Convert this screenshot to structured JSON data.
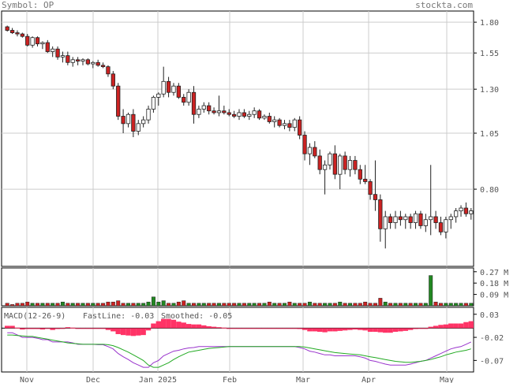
{
  "header": {
    "symbol": "Symbol: OP",
    "site": "stockta.com"
  },
  "colors": {
    "up": "#ffffff",
    "down": "#cc2222",
    "wick": "#222222",
    "vol_up": "#228822",
    "vol_down": "#cc2222",
    "grid": "#cccccc",
    "macd_pos": "#ff3366",
    "fast": "#9933cc",
    "smooth": "#22aa22"
  },
  "chart_data": [
    {
      "type": "candlestick",
      "title": "",
      "x_labels": [
        "Nov",
        "Dec",
        "Jan 2025",
        "Feb",
        "Mar",
        "Apr",
        "May"
      ],
      "y_ticks": [
        "1.80",
        "1.55",
        "1.30",
        "1.05",
        "0.80"
      ],
      "ylim": [
        0.55,
        1.9
      ],
      "y_scale": "log",
      "grid": true,
      "candles": [
        [
          1.76,
          1.77,
          1.72,
          1.73
        ],
        [
          1.73,
          1.75,
          1.7,
          1.71
        ],
        [
          1.71,
          1.73,
          1.68,
          1.7
        ],
        [
          1.7,
          1.71,
          1.67,
          1.68
        ],
        [
          1.68,
          1.7,
          1.6,
          1.61
        ],
        [
          1.61,
          1.68,
          1.59,
          1.67
        ],
        [
          1.67,
          1.68,
          1.6,
          1.62
        ],
        [
          1.62,
          1.64,
          1.58,
          1.63
        ],
        [
          1.63,
          1.65,
          1.55,
          1.56
        ],
        [
          1.56,
          1.6,
          1.52,
          1.58
        ],
        [
          1.58,
          1.6,
          1.5,
          1.52
        ],
        [
          1.52,
          1.56,
          1.48,
          1.53
        ],
        [
          1.53,
          1.56,
          1.46,
          1.48
        ],
        [
          1.48,
          1.52,
          1.45,
          1.5
        ],
        [
          1.5,
          1.52,
          1.46,
          1.49
        ],
        [
          1.49,
          1.51,
          1.46,
          1.5
        ],
        [
          1.5,
          1.51,
          1.46,
          1.47
        ],
        [
          1.47,
          1.49,
          1.44,
          1.48
        ],
        [
          1.48,
          1.5,
          1.45,
          1.46
        ],
        [
          1.46,
          1.48,
          1.44,
          1.45
        ],
        [
          1.45,
          1.46,
          1.38,
          1.4
        ],
        [
          1.4,
          1.42,
          1.3,
          1.32
        ],
        [
          1.32,
          1.34,
          1.12,
          1.14
        ],
        [
          1.14,
          1.18,
          1.05,
          1.1
        ],
        [
          1.1,
          1.16,
          1.08,
          1.15
        ],
        [
          1.15,
          1.18,
          1.03,
          1.06
        ],
        [
          1.06,
          1.12,
          1.04,
          1.1
        ],
        [
          1.1,
          1.14,
          1.08,
          1.12
        ],
        [
          1.12,
          1.2,
          1.1,
          1.18
        ],
        [
          1.18,
          1.26,
          1.16,
          1.25
        ],
        [
          1.25,
          1.28,
          1.2,
          1.27
        ],
        [
          1.27,
          1.45,
          1.25,
          1.35
        ],
        [
          1.35,
          1.38,
          1.25,
          1.28
        ],
        [
          1.28,
          1.34,
          1.26,
          1.32
        ],
        [
          1.32,
          1.34,
          1.24,
          1.25
        ],
        [
          1.25,
          1.27,
          1.2,
          1.22
        ],
        [
          1.22,
          1.3,
          1.2,
          1.28
        ],
        [
          1.28,
          1.32,
          1.1,
          1.15
        ],
        [
          1.15,
          1.2,
          1.13,
          1.18
        ],
        [
          1.18,
          1.22,
          1.16,
          1.2
        ],
        [
          1.2,
          1.22,
          1.15,
          1.17
        ],
        [
          1.17,
          1.19,
          1.15,
          1.16
        ],
        [
          1.16,
          1.26,
          1.14,
          1.17
        ],
        [
          1.17,
          1.2,
          1.15,
          1.16
        ],
        [
          1.16,
          1.18,
          1.14,
          1.15
        ],
        [
          1.15,
          1.17,
          1.13,
          1.14
        ],
        [
          1.14,
          1.18,
          1.12,
          1.16
        ],
        [
          1.16,
          1.18,
          1.13,
          1.14
        ],
        [
          1.14,
          1.17,
          1.12,
          1.15
        ],
        [
          1.15,
          1.19,
          1.13,
          1.17
        ],
        [
          1.17,
          1.18,
          1.12,
          1.13
        ],
        [
          1.13,
          1.15,
          1.12,
          1.14
        ],
        [
          1.14,
          1.16,
          1.1,
          1.11
        ],
        [
          1.11,
          1.14,
          1.08,
          1.12
        ],
        [
          1.12,
          1.13,
          1.08,
          1.09
        ],
        [
          1.09,
          1.12,
          1.07,
          1.1
        ],
        [
          1.1,
          1.12,
          1.06,
          1.08
        ],
        [
          1.08,
          1.13,
          1.06,
          1.12
        ],
        [
          1.12,
          1.14,
          1.02,
          1.04
        ],
        [
          1.04,
          1.06,
          0.92,
          0.95
        ],
        [
          0.95,
          1.0,
          0.9,
          0.98
        ],
        [
          0.98,
          1.01,
          0.93,
          0.94
        ],
        [
          0.94,
          0.97,
          0.86,
          0.88
        ],
        [
          0.88,
          0.92,
          0.78,
          0.9
        ],
        [
          0.9,
          0.96,
          0.88,
          0.95
        ],
        [
          0.95,
          0.99,
          0.84,
          0.86
        ],
        [
          0.86,
          0.95,
          0.8,
          0.94
        ],
        [
          0.94,
          0.96,
          0.86,
          0.88
        ],
        [
          0.88,
          0.94,
          0.85,
          0.92
        ],
        [
          0.92,
          0.94,
          0.86,
          0.88
        ],
        [
          0.88,
          0.9,
          0.82,
          0.84
        ],
        [
          0.84,
          0.9,
          0.82,
          0.83
        ],
        [
          0.83,
          0.84,
          0.76,
          0.78
        ],
        [
          0.78,
          0.92,
          0.72,
          0.76
        ],
        [
          0.76,
          0.78,
          0.62,
          0.66
        ],
        [
          0.66,
          0.72,
          0.6,
          0.7
        ],
        [
          0.7,
          0.71,
          0.66,
          0.68
        ],
        [
          0.68,
          0.72,
          0.66,
          0.7
        ],
        [
          0.7,
          0.72,
          0.67,
          0.69
        ],
        [
          0.69,
          0.71,
          0.66,
          0.7
        ],
        [
          0.7,
          0.71,
          0.66,
          0.68
        ],
        [
          0.68,
          0.72,
          0.66,
          0.71
        ],
        [
          0.71,
          0.72,
          0.66,
          0.67
        ],
        [
          0.67,
          0.71,
          0.65,
          0.69
        ],
        [
          0.69,
          0.9,
          0.64,
          0.7
        ],
        [
          0.7,
          0.72,
          0.66,
          0.68
        ],
        [
          0.68,
          0.7,
          0.64,
          0.65
        ],
        [
          0.65,
          0.7,
          0.63,
          0.69
        ],
        [
          0.69,
          0.71,
          0.66,
          0.7
        ],
        [
          0.7,
          0.73,
          0.68,
          0.72
        ],
        [
          0.72,
          0.74,
          0.7,
          0.73
        ],
        [
          0.73,
          0.75,
          0.7,
          0.71
        ],
        [
          0.71,
          0.73,
          0.69,
          0.72
        ]
      ]
    },
    {
      "type": "bar",
      "title": "",
      "y_ticks": [
        "0.27 M",
        "0.18 M",
        "0.09 M"
      ],
      "ylim": [
        0,
        0.3
      ],
      "unit": "M",
      "values": [
        0.02,
        0.01,
        0.02,
        0.02,
        0.03,
        0.02,
        0.02,
        0.02,
        0.02,
        0.02,
        0.02,
        0.03,
        0.02,
        0.02,
        0.02,
        0.02,
        0.02,
        0.02,
        0.02,
        0.02,
        0.03,
        0.03,
        0.04,
        0.02,
        0.02,
        0.02,
        0.02,
        0.02,
        0.03,
        0.07,
        0.03,
        0.04,
        0.02,
        0.02,
        0.03,
        0.04,
        0.02,
        0.02,
        0.02,
        0.02,
        0.02,
        0.02,
        0.02,
        0.02,
        0.02,
        0.02,
        0.02,
        0.02,
        0.02,
        0.02,
        0.02,
        0.02,
        0.03,
        0.02,
        0.02,
        0.02,
        0.03,
        0.02,
        0.02,
        0.02,
        0.03,
        0.02,
        0.02,
        0.02,
        0.02,
        0.02,
        0.03,
        0.02,
        0.02,
        0.02,
        0.02,
        0.03,
        0.02,
        0.02,
        0.06,
        0.03,
        0.02,
        0.02,
        0.02,
        0.02,
        0.02,
        0.02,
        0.02,
        0.02,
        0.24,
        0.03,
        0.02,
        0.02,
        0.02,
        0.02,
        0.02,
        0.02,
        0.02
      ]
    },
    {
      "type": "line",
      "title": "",
      "labels": {
        "name": "MACD(12-26-9)",
        "fast": "FastLine: -0.03",
        "smooth": "Smoothed: -0.05"
      },
      "y_ticks": [
        "0.03",
        "-0.02",
        "-0.07"
      ],
      "ylim": [
        -0.095,
        0.045
      ],
      "fast": [
        -0.01,
        -0.01,
        -0.015,
        -0.02,
        -0.02,
        -0.02,
        -0.022,
        -0.025,
        -0.025,
        -0.03,
        -0.03,
        -0.03,
        -0.03,
        -0.032,
        -0.035,
        -0.035,
        -0.035,
        -0.035,
        -0.036,
        -0.036,
        -0.04,
        -0.045,
        -0.055,
        -0.062,
        -0.068,
        -0.075,
        -0.08,
        -0.085,
        -0.085,
        -0.075,
        -0.07,
        -0.06,
        -0.055,
        -0.05,
        -0.048,
        -0.045,
        -0.043,
        -0.042,
        -0.04,
        -0.04,
        -0.04,
        -0.04,
        -0.04,
        -0.04,
        -0.04,
        -0.04,
        -0.04,
        -0.04,
        -0.04,
        -0.04,
        -0.04,
        -0.04,
        -0.04,
        -0.04,
        -0.04,
        -0.04,
        -0.04,
        -0.04,
        -0.042,
        -0.045,
        -0.05,
        -0.052,
        -0.055,
        -0.058,
        -0.058,
        -0.06,
        -0.06,
        -0.06,
        -0.06,
        -0.06,
        -0.062,
        -0.065,
        -0.07,
        -0.072,
        -0.075,
        -0.078,
        -0.08,
        -0.08,
        -0.08,
        -0.08,
        -0.078,
        -0.075,
        -0.072,
        -0.07,
        -0.065,
        -0.06,
        -0.055,
        -0.05,
        -0.045,
        -0.042,
        -0.04,
        -0.035,
        -0.03
      ],
      "smooth": [
        -0.015,
        -0.015,
        -0.016,
        -0.017,
        -0.018,
        -0.018,
        -0.02,
        -0.022,
        -0.024,
        -0.026,
        -0.028,
        -0.03,
        -0.032,
        -0.033,
        -0.034,
        -0.035,
        -0.035,
        -0.035,
        -0.035,
        -0.035,
        -0.036,
        -0.038,
        -0.042,
        -0.047,
        -0.052,
        -0.058,
        -0.064,
        -0.07,
        -0.08,
        -0.085,
        -0.085,
        -0.08,
        -0.075,
        -0.068,
        -0.062,
        -0.057,
        -0.052,
        -0.05,
        -0.048,
        -0.046,
        -0.044,
        -0.043,
        -0.042,
        -0.041,
        -0.04,
        -0.04,
        -0.04,
        -0.04,
        -0.04,
        -0.04,
        -0.04,
        -0.04,
        -0.04,
        -0.04,
        -0.04,
        -0.04,
        -0.04,
        -0.04,
        -0.04,
        -0.041,
        -0.043,
        -0.045,
        -0.047,
        -0.049,
        -0.051,
        -0.053,
        -0.054,
        -0.055,
        -0.056,
        -0.057,
        -0.058,
        -0.06,
        -0.062,
        -0.064,
        -0.066,
        -0.068,
        -0.07,
        -0.072,
        -0.073,
        -0.074,
        -0.074,
        -0.073,
        -0.072,
        -0.07,
        -0.068,
        -0.065,
        -0.062,
        -0.058,
        -0.055,
        -0.052,
        -0.05,
        -0.048,
        -0.045
      ],
      "hist_color_note": ""
    }
  ]
}
